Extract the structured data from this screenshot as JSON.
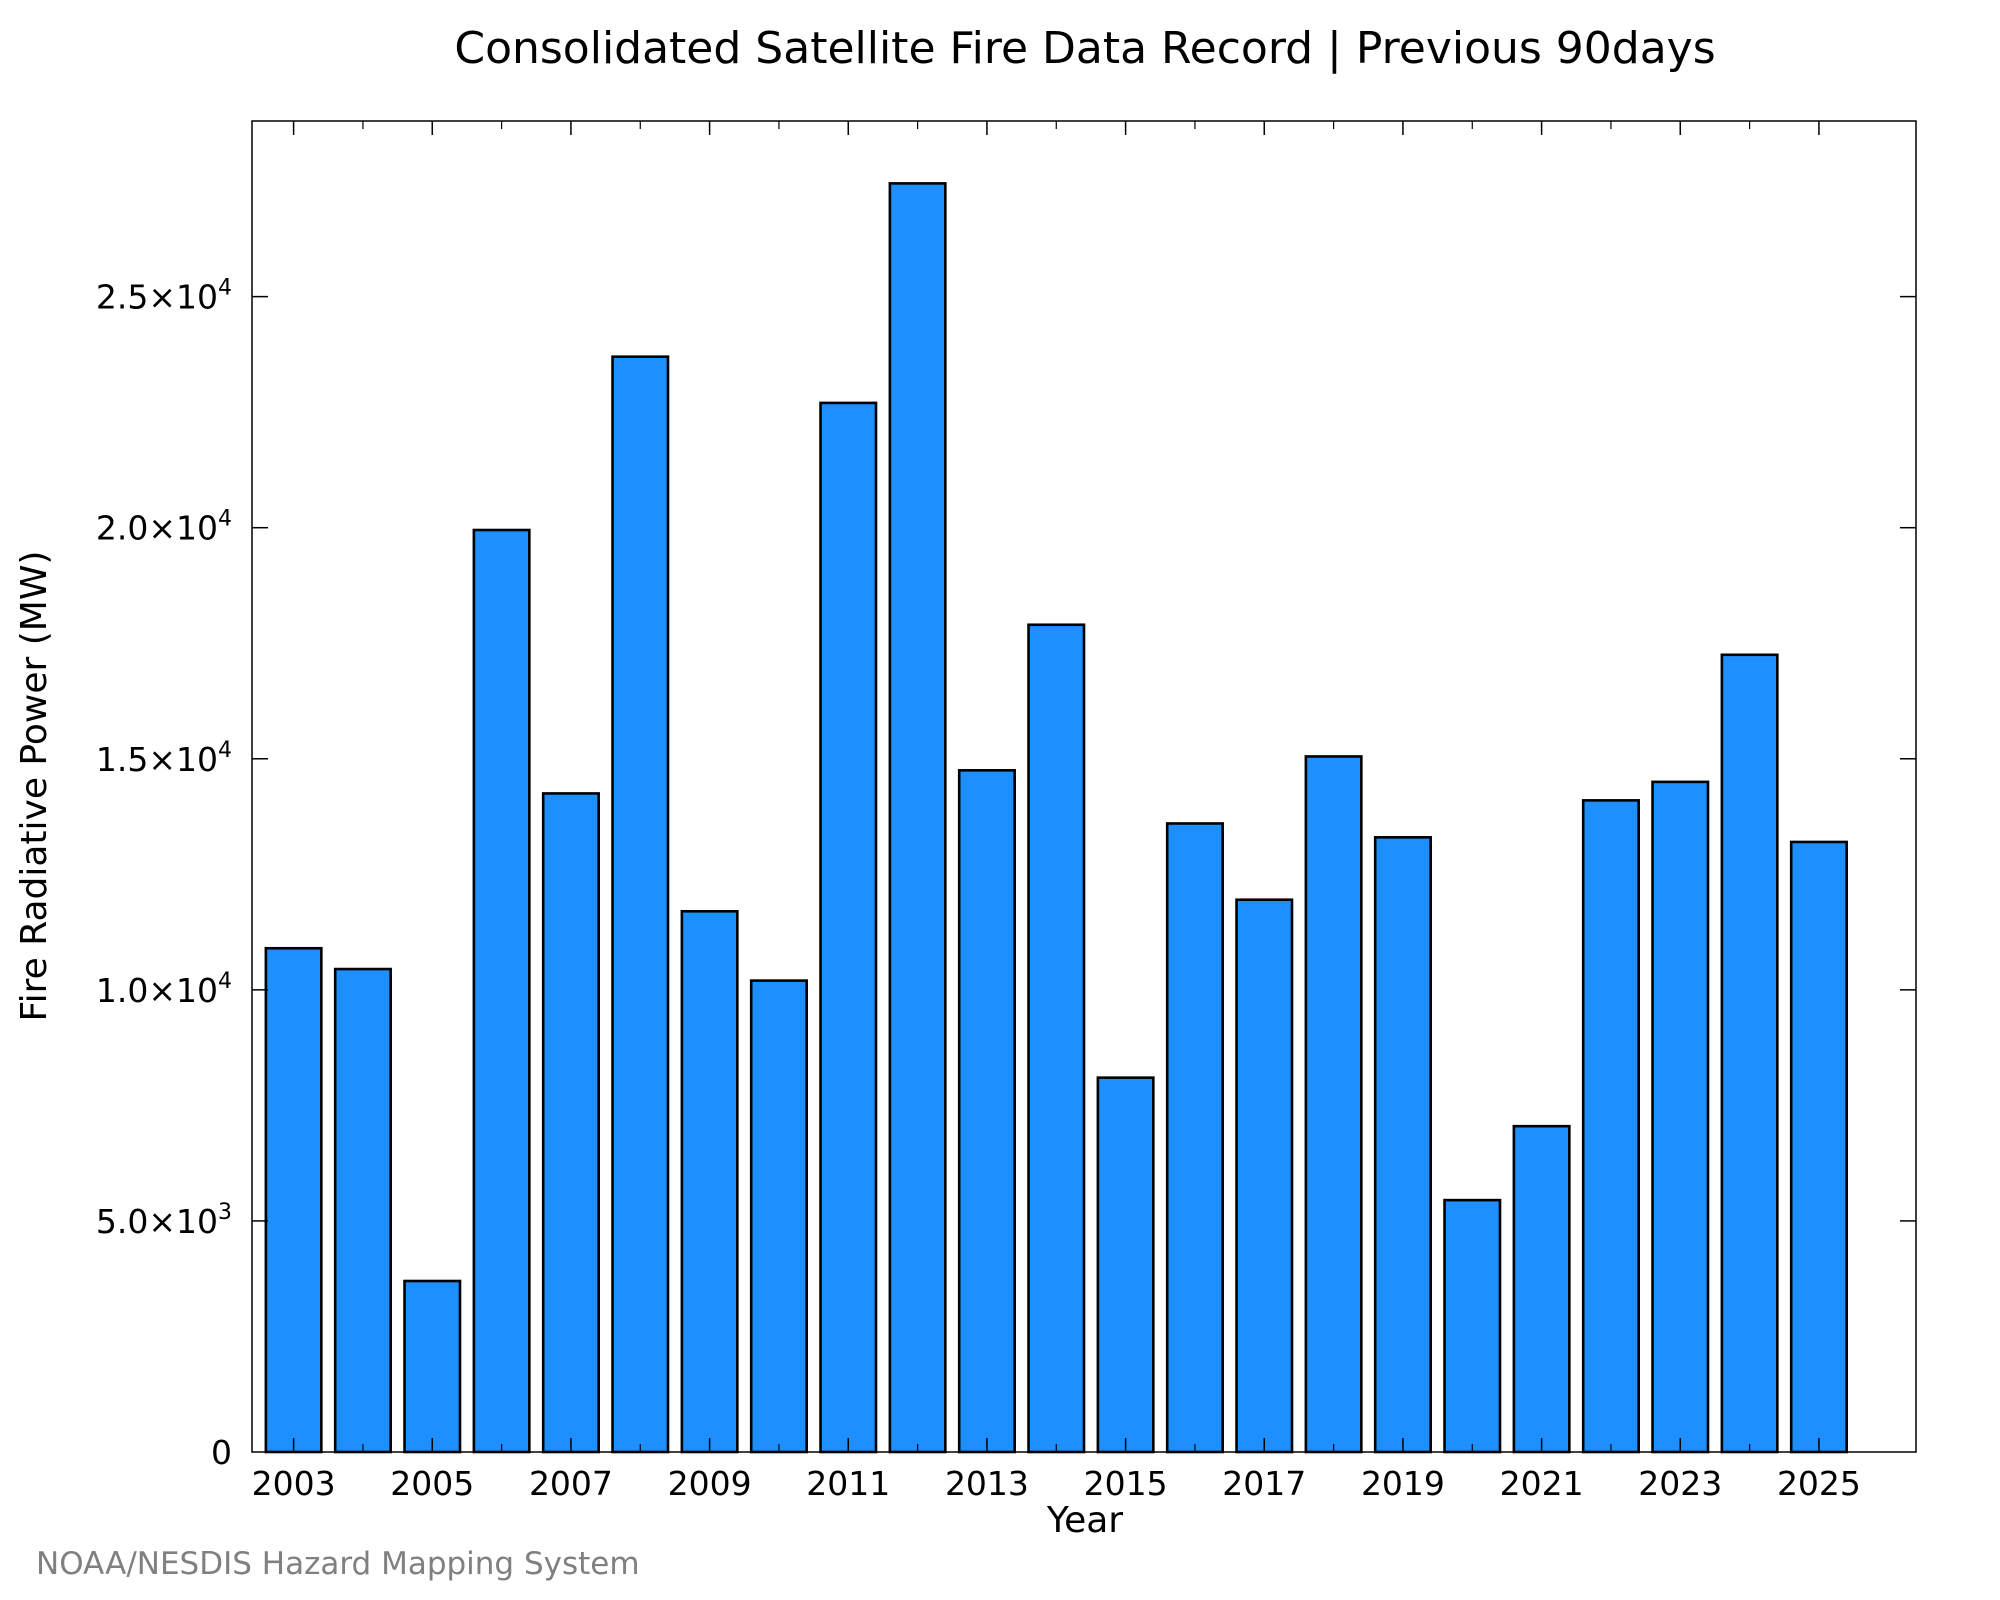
{
  "chart_data": {
    "type": "bar",
    "title": "Consolidated Satellite Fire Data Record | Previous 90days",
    "xlabel": "Year",
    "ylabel": "Fire Radiative Power (MW)",
    "categories": [
      "2003",
      "2004",
      "2005",
      "2006",
      "2007",
      "2008",
      "2009",
      "2010",
      "2011",
      "2012",
      "2013",
      "2014",
      "2015",
      "2016",
      "2017",
      "2018",
      "2019",
      "2020",
      "2021",
      "2022",
      "2023",
      "2024",
      "2025"
    ],
    "values": [
      10900,
      10450,
      3700,
      19950,
      14250,
      23700,
      11700,
      10200,
      22700,
      27450,
      14750,
      17900,
      8100,
      13600,
      11950,
      15050,
      13300,
      5450,
      7050,
      14100,
      14500,
      17250,
      13200
    ],
    "x_tick_labels": [
      "2003",
      "2005",
      "2007",
      "2009",
      "2011",
      "2013",
      "2015",
      "2017",
      "2019",
      "2021",
      "2023",
      "2025"
    ],
    "y_ticks": [
      {
        "value": 0,
        "mantissa": "0",
        "exp": ""
      },
      {
        "value": 5000,
        "mantissa": "5.0×10",
        "exp": "3"
      },
      {
        "value": 10000,
        "mantissa": "1.0×10",
        "exp": "4"
      },
      {
        "value": 15000,
        "mantissa": "1.5×10",
        "exp": "4"
      },
      {
        "value": 20000,
        "mantissa": "2.0×10",
        "exp": "4"
      },
      {
        "value": 25000,
        "mantissa": "2.5×10",
        "exp": "4"
      }
    ],
    "ylim": [
      0,
      28800
    ],
    "xlim": [
      2002.4,
      2026.4
    ],
    "grid": false,
    "legend": "none",
    "bar_color": "#1e8fff",
    "bar_edge_color": "#000000"
  },
  "credit": "NOAA/NESDIS Hazard Mapping System"
}
